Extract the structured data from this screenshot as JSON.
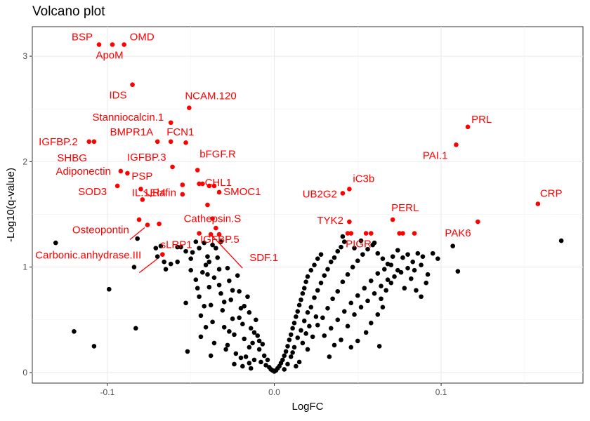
{
  "chart_data": {
    "type": "scatter",
    "title": "Volcano plot",
    "xlabel": "LogFC",
    "ylabel": "-Log10(q-value)",
    "xlim": [
      -0.145,
      0.185
    ],
    "ylim": [
      -0.1,
      3.28
    ],
    "x_ticks": [
      -0.1,
      0.0,
      0.1
    ],
    "x_tick_labels": [
      "-0.1",
      "0.0",
      "0.1"
    ],
    "y_ticks": [
      0,
      1,
      2,
      3
    ],
    "y_tick_labels": [
      "0",
      "1",
      "2",
      "3"
    ],
    "grid": true,
    "colors": {
      "significant": "#ff0000",
      "other": "#000000"
    },
    "significant_points": [
      {
        "label": "BSP",
        "x": -0.105,
        "y": 3.11
      },
      {
        "label": "OMD",
        "x": -0.09,
        "y": 3.11
      },
      {
        "label": "ApoM",
        "x": -0.097,
        "y": 3.11
      },
      {
        "label": "IDS",
        "x": -0.085,
        "y": 2.73
      },
      {
        "label": "NCAM.120",
        "x": -0.051,
        "y": 2.51
      },
      {
        "label": "Stanniocalcin.1",
        "x": -0.062,
        "y": 2.37
      },
      {
        "label": "PRL",
        "x": 0.116,
        "y": 2.33
      },
      {
        "label": "IGFBP.2",
        "x": -0.111,
        "y": 2.19
      },
      {
        "label": "SHBG",
        "x": -0.108,
        "y": 2.19
      },
      {
        "label": "BMPR1A",
        "x": -0.07,
        "y": 2.19
      },
      {
        "label": "FCN1",
        "x": -0.062,
        "y": 2.19
      },
      {
        "label": "",
        "x": -0.053,
        "y": 2.18
      },
      {
        "label": "PAI.1",
        "x": 0.109,
        "y": 2.16
      },
      {
        "label": "IGFBP.3",
        "x": -0.061,
        "y": 1.95
      },
      {
        "label": "bFGF.R",
        "x": -0.046,
        "y": 1.92
      },
      {
        "label": "Adiponectin",
        "x": -0.092,
        "y": 1.91
      },
      {
        "label": "PSP",
        "x": -0.088,
        "y": 1.89
      },
      {
        "label": "CHL1",
        "x": -0.045,
        "y": 1.79
      },
      {
        "label": "",
        "x": -0.043,
        "y": 1.79
      },
      {
        "label": "",
        "x": -0.039,
        "y": 1.77
      },
      {
        "label": "",
        "x": -0.036,
        "y": 1.77
      },
      {
        "label": "SOD3",
        "x": -0.094,
        "y": 1.77
      },
      {
        "label": "",
        "x": -0.055,
        "y": 1.78
      },
      {
        "label": "Elafin",
        "x": -0.08,
        "y": 1.74
      },
      {
        "label": "iC3b",
        "x": 0.045,
        "y": 1.74
      },
      {
        "label": "SMOC1",
        "x": -0.033,
        "y": 1.71
      },
      {
        "label": "UB2G2",
        "x": 0.041,
        "y": 1.7
      },
      {
        "label": "",
        "x": -0.055,
        "y": 1.69
      },
      {
        "label": "IL.1.R4",
        "x": -0.079,
        "y": 1.64
      },
      {
        "label": "CRP",
        "x": 0.158,
        "y": 1.6
      },
      {
        "label": "",
        "x": -0.04,
        "y": 1.59
      },
      {
        "label": "Cathepsin.S",
        "x": -0.037,
        "y": 1.46
      },
      {
        "label": "PERL",
        "x": 0.071,
        "y": 1.45
      },
      {
        "label": "TYK2",
        "x": 0.045,
        "y": 1.43
      },
      {
        "label": "PAK6",
        "x": 0.122,
        "y": 1.43
      },
      {
        "label": "",
        "x": -0.081,
        "y": 1.45
      },
      {
        "label": "",
        "x": -0.069,
        "y": 1.41
      },
      {
        "label": "Osteopontin",
        "x": -0.076,
        "y": 1.4
      },
      {
        "label": "",
        "x": -0.035,
        "y": 1.37
      },
      {
        "label": "sLRP1",
        "x": -0.045,
        "y": 1.32
      },
      {
        "label": "IGFBP.5",
        "x": -0.033,
        "y": 1.31
      },
      {
        "label": "",
        "x": 0.044,
        "y": 1.32
      },
      {
        "label": "",
        "x": 0.046,
        "y": 1.32
      },
      {
        "label": "PIGR",
        "x": 0.055,
        "y": 1.32
      },
      {
        "label": "",
        "x": 0.058,
        "y": 1.32
      },
      {
        "label": "",
        "x": 0.075,
        "y": 1.32
      },
      {
        "label": "",
        "x": 0.077,
        "y": 1.32
      },
      {
        "label": "",
        "x": 0.084,
        "y": 1.32
      },
      {
        "label": "Carbonic.anhydrase.III",
        "x": -0.067,
        "y": 1.12
      },
      {
        "label": "SDF.1",
        "x": -0.038,
        "y": 1.31
      }
    ],
    "other_points": [
      [
        -0.131,
        1.23
      ],
      [
        -0.12,
        0.39
      ],
      [
        -0.108,
        0.25
      ],
      [
        -0.099,
        0.79
      ],
      [
        -0.082,
        1.27
      ],
      [
        -0.084,
        1.0
      ],
      [
        -0.083,
        0.42
      ],
      [
        -0.071,
        1.18
      ],
      [
        -0.07,
        1.1
      ],
      [
        -0.068,
        1.2
      ],
      [
        -0.066,
        1.05
      ],
      [
        -0.065,
        0.98
      ],
      [
        -0.062,
        1.03
      ],
      [
        -0.058,
        1.19
      ],
      [
        -0.056,
        1.19
      ],
      [
        -0.053,
        1.15
      ],
      [
        -0.05,
        1.08
      ],
      [
        -0.049,
        1.14
      ],
      [
        -0.047,
        1.24
      ],
      [
        -0.045,
        1.18
      ],
      [
        -0.042,
        1.23
      ],
      [
        -0.04,
        1.1
      ],
      [
        -0.037,
        1.21
      ],
      [
        -0.035,
        1.18
      ],
      [
        -0.032,
        1.24
      ],
      [
        -0.053,
        0.66
      ],
      [
        -0.052,
        0.2
      ],
      [
        -0.047,
        0.88
      ],
      [
        -0.045,
        0.72
      ],
      [
        -0.044,
        0.54
      ],
      [
        -0.044,
        0.34
      ],
      [
        -0.041,
        1.02
      ],
      [
        -0.04,
        0.93
      ],
      [
        -0.039,
        0.81
      ],
      [
        -0.038,
        0.64
      ],
      [
        -0.037,
        0.48
      ],
      [
        -0.036,
        0.28
      ],
      [
        -0.034,
        1.09
      ],
      [
        -0.033,
        0.98
      ],
      [
        -0.032,
        0.75
      ],
      [
        -0.031,
        0.59
      ],
      [
        -0.03,
        0.43
      ],
      [
        -0.029,
        0.22
      ],
      [
        -0.028,
        0.99
      ],
      [
        -0.027,
        0.87
      ],
      [
        -0.026,
        0.69
      ],
      [
        -0.025,
        0.51
      ],
      [
        -0.024,
        0.36
      ],
      [
        -0.023,
        0.18
      ],
      [
        -0.022,
        0.92
      ],
      [
        -0.021,
        0.77
      ],
      [
        -0.02,
        0.61
      ],
      [
        -0.019,
        0.46
      ],
      [
        -0.018,
        0.32
      ],
      [
        -0.017,
        0.15
      ],
      [
        -0.016,
        0.72
      ],
      [
        -0.015,
        0.57
      ],
      [
        -0.014,
        0.42
      ],
      [
        -0.013,
        0.28
      ],
      [
        -0.012,
        0.12
      ],
      [
        -0.011,
        0.5
      ],
      [
        -0.01,
        0.35
      ],
      [
        -0.009,
        0.22
      ],
      [
        -0.008,
        0.1
      ],
      [
        -0.007,
        0.27
      ],
      [
        -0.006,
        0.16
      ],
      [
        -0.005,
        0.07
      ],
      [
        -0.004,
        0.12
      ],
      [
        -0.003,
        0.05
      ],
      [
        -0.002,
        0.03
      ],
      [
        -0.001,
        0.02
      ],
      [
        0.0,
        0.01
      ],
      [
        -0.043,
        0.95
      ],
      [
        -0.039,
        1.05
      ],
      [
        -0.036,
        0.9
      ],
      [
        -0.033,
        0.83
      ],
      [
        -0.03,
        0.67
      ],
      [
        -0.027,
        0.39
      ],
      [
        -0.025,
        0.78
      ],
      [
        -0.021,
        0.52
      ],
      [
        -0.018,
        0.63
      ],
      [
        -0.015,
        0.24
      ],
      [
        -0.012,
        0.38
      ],
      [
        -0.009,
        0.3
      ],
      [
        -0.058,
        1.05
      ],
      [
        -0.05,
        0.97
      ],
      [
        -0.046,
        0.8
      ],
      [
        -0.042,
        0.63
      ],
      [
        -0.041,
        0.43
      ],
      [
        -0.038,
        0.16
      ],
      [
        -0.024,
        0.08
      ],
      [
        -0.019,
        0.06
      ],
      [
        -0.015,
        0.09
      ],
      [
        -0.014,
        0.04
      ],
      [
        -0.02,
        0.14
      ],
      [
        -0.028,
        0.26
      ],
      [
        0.001,
        0.02
      ],
      [
        0.002,
        0.04
      ],
      [
        0.003,
        0.06
      ],
      [
        0.004,
        0.09
      ],
      [
        0.005,
        0.12
      ],
      [
        0.006,
        0.16
      ],
      [
        0.007,
        0.2
      ],
      [
        0.008,
        0.25
      ],
      [
        0.009,
        0.31
      ],
      [
        0.01,
        0.36
      ],
      [
        0.011,
        0.42
      ],
      [
        0.012,
        0.47
      ],
      [
        0.013,
        0.53
      ],
      [
        0.014,
        0.58
      ],
      [
        0.015,
        0.64
      ],
      [
        0.016,
        0.69
      ],
      [
        0.017,
        0.75
      ],
      [
        0.018,
        0.8
      ],
      [
        0.019,
        0.86
      ],
      [
        0.02,
        0.91
      ],
      [
        0.022,
        0.97
      ],
      [
        0.024,
        1.02
      ],
      [
        0.026,
        1.08
      ],
      [
        0.028,
        1.12
      ],
      [
        0.01,
        0.15
      ],
      [
        0.012,
        0.24
      ],
      [
        0.014,
        0.33
      ],
      [
        0.016,
        0.4
      ],
      [
        0.018,
        0.49
      ],
      [
        0.02,
        0.57
      ],
      [
        0.022,
        0.62
      ],
      [
        0.024,
        0.71
      ],
      [
        0.026,
        0.78
      ],
      [
        0.028,
        0.85
      ],
      [
        0.03,
        0.92
      ],
      [
        0.032,
        0.98
      ],
      [
        0.034,
        1.05
      ],
      [
        0.036,
        1.09
      ],
      [
        0.038,
        1.15
      ],
      [
        0.04,
        1.19
      ],
      [
        0.042,
        1.24
      ],
      [
        0.041,
        1.29
      ],
      [
        0.02,
        0.22
      ],
      [
        0.023,
        0.34
      ],
      [
        0.026,
        0.45
      ],
      [
        0.029,
        0.52
      ],
      [
        0.032,
        0.61
      ],
      [
        0.035,
        0.7
      ],
      [
        0.038,
        0.77
      ],
      [
        0.041,
        0.86
      ],
      [
        0.044,
        0.93
      ],
      [
        0.047,
        1.0
      ],
      [
        0.05,
        1.06
      ],
      [
        0.053,
        1.12
      ],
      [
        0.056,
        1.17
      ],
      [
        0.059,
        1.21
      ],
      [
        0.062,
        1.13
      ],
      [
        0.065,
        1.08
      ],
      [
        0.068,
        1.03
      ],
      [
        0.071,
        1.1
      ],
      [
        0.074,
        1.16
      ],
      [
        0.077,
        1.09
      ],
      [
        0.08,
        1.12
      ],
      [
        0.083,
        1.05
      ],
      [
        0.086,
        1.13
      ],
      [
        0.089,
        1.1
      ],
      [
        0.03,
        0.35
      ],
      [
        0.034,
        0.42
      ],
      [
        0.038,
        0.5
      ],
      [
        0.042,
        0.58
      ],
      [
        0.046,
        0.66
      ],
      [
        0.05,
        0.73
      ],
      [
        0.054,
        0.8
      ],
      [
        0.058,
        0.87
      ],
      [
        0.062,
        0.94
      ],
      [
        0.066,
        0.98
      ],
      [
        0.07,
        1.02
      ],
      [
        0.074,
        0.97
      ],
      [
        0.033,
        0.15
      ],
      [
        0.036,
        0.26
      ],
      [
        0.04,
        0.31
      ],
      [
        0.044,
        0.44
      ],
      [
        0.048,
        0.55
      ],
      [
        0.052,
        0.62
      ],
      [
        0.056,
        0.68
      ],
      [
        0.06,
        0.75
      ],
      [
        0.064,
        0.82
      ],
      [
        0.068,
        0.88
      ],
      [
        0.072,
        0.91
      ],
      [
        0.076,
        0.95
      ],
      [
        0.08,
        0.99
      ],
      [
        0.084,
        0.97
      ],
      [
        0.088,
        1.02
      ],
      [
        0.092,
        0.93
      ],
      [
        0.095,
        1.13
      ],
      [
        0.098,
        1.08
      ],
      [
        0.062,
        0.55
      ],
      [
        0.065,
        0.62
      ],
      [
        0.058,
        0.47
      ],
      [
        0.055,
        0.38
      ],
      [
        0.05,
        0.3
      ],
      [
        0.046,
        0.24
      ],
      [
        0.063,
        0.25
      ],
      [
        0.064,
        0.7
      ],
      [
        0.067,
        0.78
      ],
      [
        0.07,
        0.85
      ],
      [
        0.078,
        0.8
      ],
      [
        0.082,
        0.89
      ],
      [
        0.091,
        0.85
      ],
      [
        0.085,
        0.78
      ],
      [
        0.088,
        0.72
      ],
      [
        0.06,
        1.23
      ],
      [
        0.052,
        1.25
      ],
      [
        0.048,
        1.18
      ],
      [
        0.107,
        1.2
      ],
      [
        0.11,
        0.96
      ],
      [
        0.172,
        1.25
      ],
      [
        0.015,
        0.1
      ],
      [
        0.013,
        0.06
      ],
      [
        0.008,
        0.08
      ],
      [
        0.006,
        0.03
      ],
      [
        0.011,
        0.19
      ],
      [
        0.017,
        0.28
      ],
      [
        0.019,
        0.37
      ],
      [
        0.021,
        0.44
      ],
      [
        0.025,
        0.53
      ]
    ]
  }
}
